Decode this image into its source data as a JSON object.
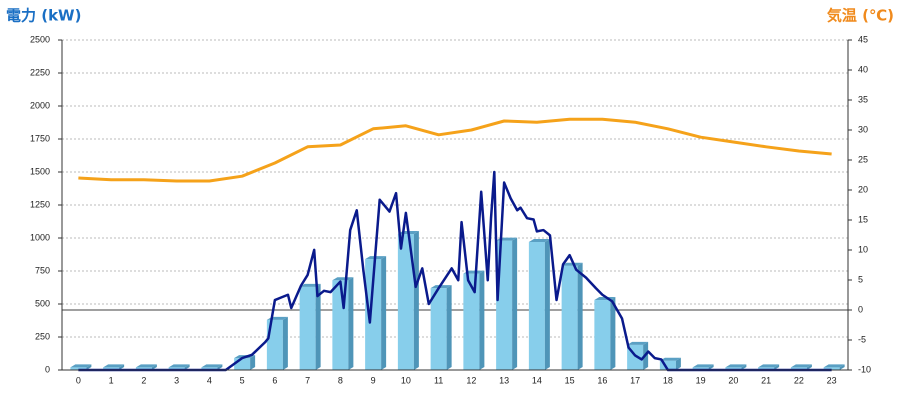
{
  "chart_data": {
    "type": "bar",
    "y_title": "電力 (kW)",
    "y2_title": "気温 (℃)",
    "categories": [
      "0",
      "1",
      "2",
      "3",
      "4",
      "5",
      "6",
      "7",
      "8",
      "9",
      "10",
      "11",
      "12",
      "13",
      "14",
      "15",
      "16",
      "17",
      "18",
      "19",
      "20",
      "21",
      "22",
      "23"
    ],
    "ylim": [
      0,
      2500
    ],
    "yticks": [
      0,
      250,
      500,
      750,
      1000,
      1250,
      1500,
      1750,
      2000,
      2250,
      2500
    ],
    "y2lim": [
      -10,
      45
    ],
    "y2ticks": [
      -10,
      -5,
      0,
      5,
      10,
      15,
      20,
      25,
      30,
      35,
      40,
      45
    ],
    "grid": true,
    "series": [
      {
        "type": "bar",
        "color": "#87ceeb",
        "values": [
          20,
          20,
          20,
          20,
          20,
          90,
          380,
          630,
          680,
          840,
          1030,
          620,
          730,
          980,
          970,
          790,
          530,
          190,
          70,
          20,
          20,
          20,
          20,
          20
        ]
      },
      {
        "type": "line",
        "color": "#0a1a8c",
        "x": [
          0,
          1,
          2,
          3,
          4,
          4.5,
          5,
          5.3,
          5.7,
          5.8,
          6,
          6.2,
          6.4,
          6.5,
          6.8,
          7,
          7.2,
          7.3,
          7.5,
          7.7,
          8,
          8.1,
          8.3,
          8.5,
          8.7,
          8.9,
          9.2,
          9.5,
          9.7,
          9.85,
          10,
          10.3,
          10.5,
          10.7,
          11,
          11.4,
          11.6,
          11.7,
          11.9,
          12.1,
          12.3,
          12.5,
          12.6,
          12.7,
          12.8,
          13,
          13.2,
          13.4,
          13.5,
          13.7,
          13.9,
          14,
          14.2,
          14.4,
          14.6,
          14.8,
          15,
          15.2,
          15.5,
          15.8,
          16,
          16.3,
          16.6,
          16.8,
          17,
          17.2,
          17.4,
          17.6,
          17.8,
          18,
          19,
          20,
          21,
          22,
          23
        ],
        "values": [
          0,
          0,
          0,
          0,
          0,
          0,
          90,
          115,
          210,
          240,
          530,
          550,
          570,
          470,
          640,
          720,
          910,
          560,
          600,
          590,
          670,
          470,
          1060,
          1210,
          760,
          360,
          1290,
          1200,
          1340,
          920,
          1190,
          630,
          770,
          500,
          620,
          770,
          680,
          1120,
          680,
          590,
          1350,
          680,
          1150,
          1500,
          530,
          1420,
          1300,
          1210,
          1230,
          1150,
          1140,
          1050,
          1060,
          1020,
          530,
          800,
          870,
          760,
          700,
          620,
          570,
          520,
          390,
          170,
          110,
          80,
          140,
          90,
          80,
          0,
          0,
          0,
          0,
          0,
          0
        ]
      },
      {
        "type": "line",
        "color": "#f5a21a",
        "axis": "y2",
        "values": [
          22,
          21.7,
          21.7,
          21.5,
          21.5,
          22.3,
          24.5,
          27.2,
          27.5,
          30.2,
          30.7,
          29.2,
          30,
          31.5,
          31.3,
          31.8,
          31.8,
          31.3,
          30.2,
          28.8,
          28,
          27.2,
          26.5,
          26
        ]
      }
    ]
  }
}
